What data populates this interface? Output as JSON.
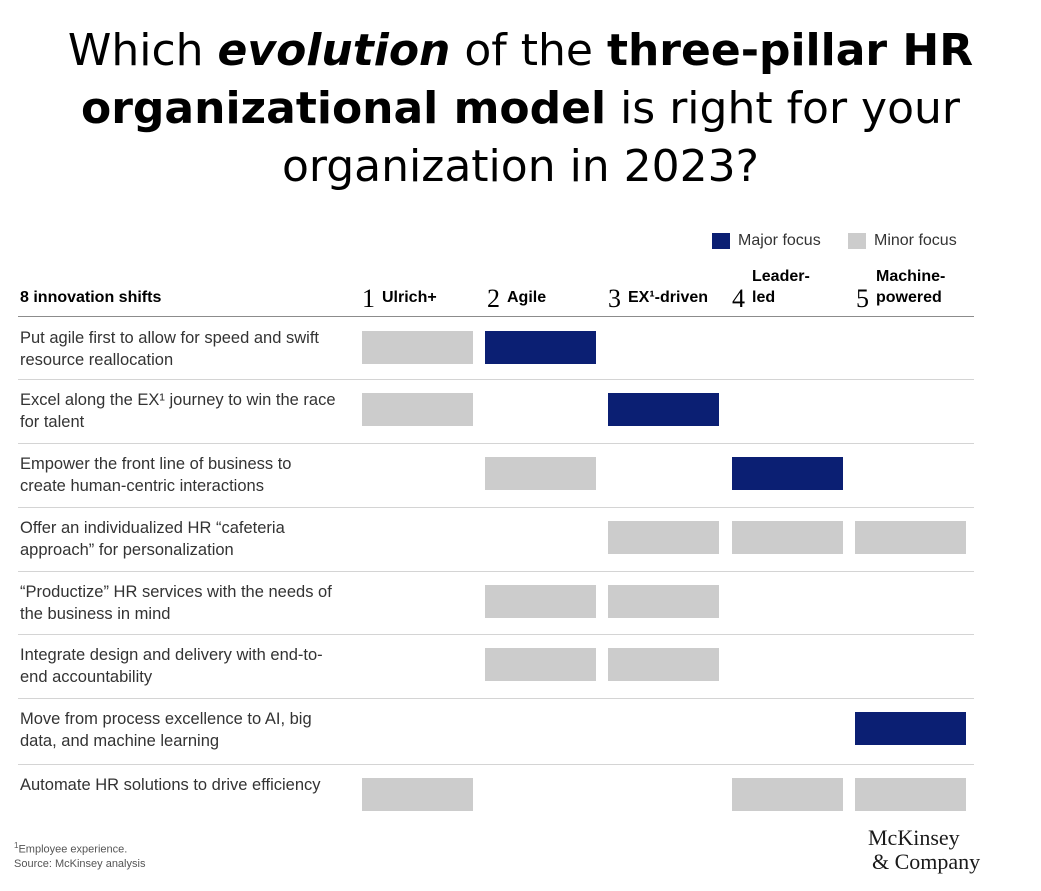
{
  "title": {
    "line1_a": "Which ",
    "line1_b": "evolution",
    "line1_c": " of the ",
    "line1_d": "three-pillar HR",
    "line2_a": "organizational model",
    "line2_b": " is right for your",
    "line3": "organization in 2023?"
  },
  "colors": {
    "major": "#0b1f73",
    "minor": "#cccccc"
  },
  "chart_data": {
    "type": "table",
    "legend": [
      {
        "key": "major",
        "label": "Major focus"
      },
      {
        "key": "minor",
        "label": "Minor focus"
      }
    ],
    "row_header": "8 innovation shifts",
    "columns": [
      {
        "num": "1",
        "label": "Ulrich+"
      },
      {
        "num": "2",
        "label": "Agile"
      },
      {
        "num": "3",
        "label": "EX¹-driven"
      },
      {
        "num": "4",
        "label": "Leader-\nled"
      },
      {
        "num": "5",
        "label": "Machine-\npowered"
      }
    ],
    "rows": [
      {
        "label": "Put agile first to allow for speed and swift resource reallocation",
        "cells": [
          "minor",
          "major",
          null,
          null,
          null
        ]
      },
      {
        "label": "Excel along the EX¹ journey to win the race for talent",
        "cells": [
          "minor",
          null,
          "major",
          null,
          null
        ]
      },
      {
        "label": "Empower the front line of business to create human-centric interactions",
        "cells": [
          null,
          "minor",
          null,
          "major",
          null
        ]
      },
      {
        "label": "Offer an individualized HR “cafeteria approach” for personalization",
        "cells": [
          null,
          null,
          "minor",
          "minor",
          "minor"
        ]
      },
      {
        "label": "“Productize” HR services with the needs of the business in mind",
        "cells": [
          null,
          "minor",
          "minor",
          null,
          null
        ]
      },
      {
        "label": "Integrate design and delivery with end-to-end accountability",
        "cells": [
          null,
          "minor",
          "minor",
          null,
          null
        ]
      },
      {
        "label": "Move from process excellence to AI, big data, and machine learning",
        "cells": [
          null,
          null,
          null,
          null,
          "major"
        ]
      },
      {
        "label": "Automate HR solutions to drive efficiency",
        "cells": [
          "minor",
          null,
          null,
          "minor",
          "minor"
        ]
      }
    ]
  },
  "footnote": {
    "marker": "1",
    "text": "Employee experience.",
    "source": "Source: McKinsey analysis"
  },
  "logo": {
    "line1": "McKinsey",
    "line2": "& Company"
  }
}
